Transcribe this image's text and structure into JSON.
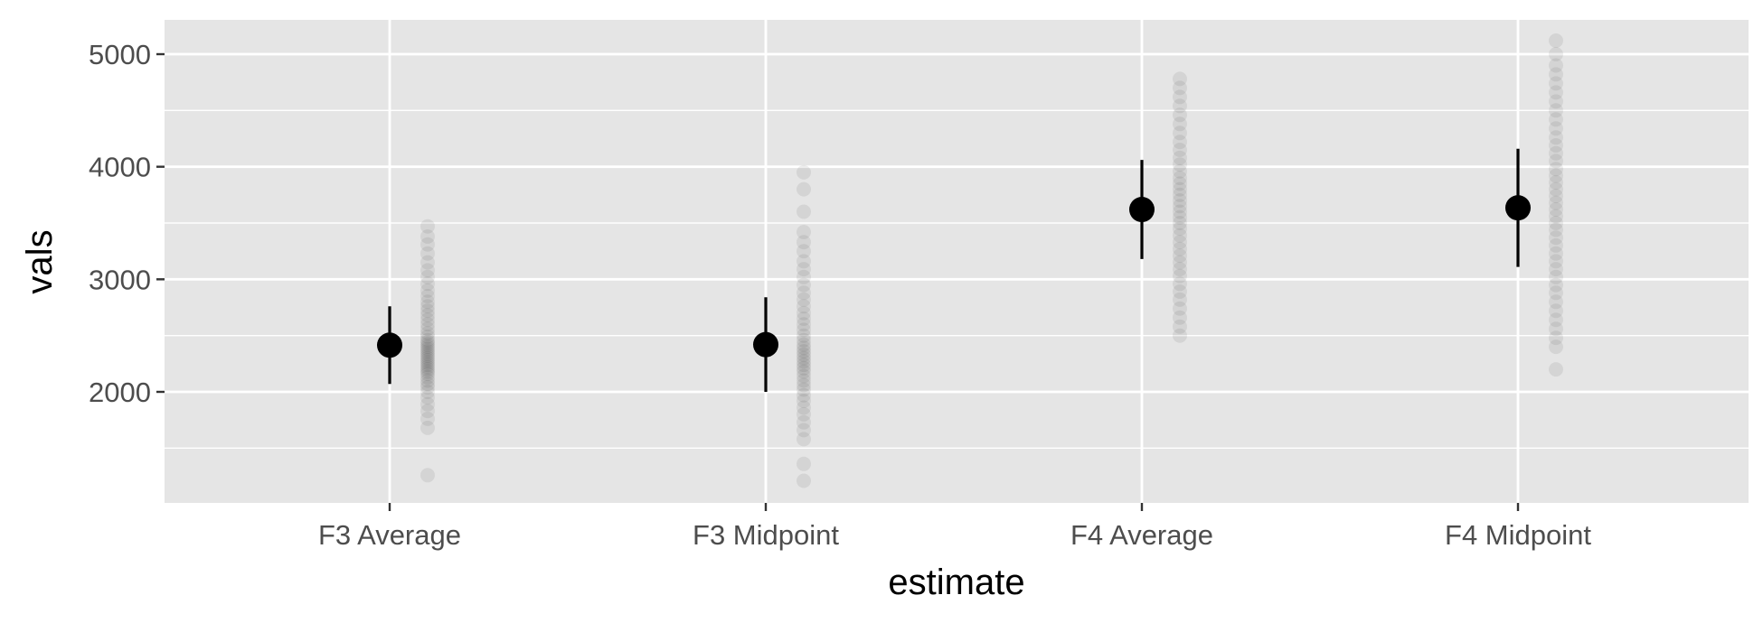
{
  "chart_data": {
    "type": "scatter",
    "xlabel": "estimate",
    "ylabel": "vals",
    "categories": [
      "F3 Average",
      "F3 Midpoint",
      "F4 Average",
      "F4 Midpoint"
    ],
    "ylim": [
      1000,
      5300
    ],
    "yticks": [
      2000,
      3000,
      4000,
      5000
    ],
    "grid": true,
    "colors": {
      "panel": "#e5e5e5",
      "grid": "#ffffff",
      "point": "#000000",
      "tick": "#333333"
    },
    "summary": [
      {
        "category": "F3 Average",
        "mean": 2415,
        "lower": 2070,
        "upper": 2760
      },
      {
        "category": "F3 Midpoint",
        "mean": 2420,
        "lower": 2000,
        "upper": 2840
      },
      {
        "category": "F4 Average",
        "mean": 3620,
        "lower": 3180,
        "upper": 4060
      },
      {
        "category": "F4 Midpoint",
        "mean": 3635,
        "lower": 3110,
        "upper": 4160
      }
    ],
    "raw_points": [
      {
        "category": "F3 Average",
        "values": [
          1260,
          1680,
          1760,
          1830,
          1890,
          1950,
          2000,
          2040,
          2070,
          2100,
          2130,
          2160,
          2180,
          2200,
          2220,
          2240,
          2260,
          2280,
          2300,
          2320,
          2340,
          2360,
          2380,
          2400,
          2420,
          2440,
          2460,
          2490,
          2520,
          2560,
          2600,
          2640,
          2680,
          2720,
          2760,
          2800,
          2850,
          2900,
          2960,
          3020,
          3080,
          3150,
          3230,
          3310,
          3380,
          3470
        ]
      },
      {
        "category": "F3 Midpoint",
        "values": [
          1210,
          1360,
          1580,
          1660,
          1730,
          1800,
          1860,
          1920,
          1970,
          2020,
          2060,
          2100,
          2140,
          2180,
          2210,
          2240,
          2270,
          2300,
          2330,
          2360,
          2390,
          2420,
          2460,
          2500,
          2550,
          2600,
          2650,
          2700,
          2760,
          2820,
          2880,
          2950,
          3020,
          3090,
          3160,
          3250,
          3330,
          3420,
          3600,
          3800,
          3950
        ]
      },
      {
        "category": "F4 Average",
        "values": [
          2500,
          2580,
          2660,
          2740,
          2820,
          2890,
          2960,
          3030,
          3090,
          3150,
          3210,
          3270,
          3330,
          3390,
          3450,
          3500,
          3550,
          3600,
          3650,
          3700,
          3750,
          3800,
          3850,
          3900,
          3960,
          4020,
          4080,
          4150,
          4220,
          4300,
          4380,
          4460,
          4540,
          4620,
          4700,
          4780
        ]
      },
      {
        "category": "F4 Midpoint",
        "values": [
          2200,
          2400,
          2480,
          2560,
          2640,
          2720,
          2800,
          2880,
          2950,
          3020,
          3090,
          3160,
          3230,
          3300,
          3370,
          3440,
          3500,
          3560,
          3620,
          3680,
          3740,
          3800,
          3860,
          3920,
          3980,
          4050,
          4120,
          4190,
          4260,
          4340,
          4420,
          4500,
          4580,
          4660,
          4740,
          4820,
          4900,
          5000,
          5120
        ]
      }
    ]
  }
}
